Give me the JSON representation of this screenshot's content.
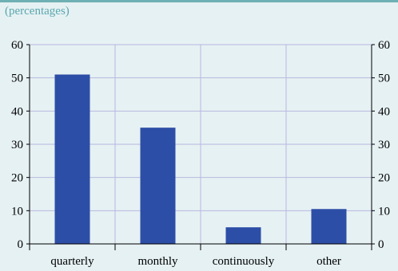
{
  "unit_label": "(percentages)",
  "colors": {
    "background": "#e6f1f3",
    "bar": "#2d4ea6",
    "grid": "#b8b8e0",
    "accent": "#6fb0b4",
    "axis": "#000000"
  },
  "chart_data": {
    "type": "bar",
    "categories": [
      "quarterly",
      "monthly",
      "continuously",
      "other"
    ],
    "values": [
      51,
      35,
      5,
      10.5
    ],
    "ylim": [
      0,
      60
    ],
    "yticks": [
      0,
      10,
      20,
      30,
      40,
      50,
      60
    ],
    "grid": true,
    "dual_y_axis": true
  }
}
